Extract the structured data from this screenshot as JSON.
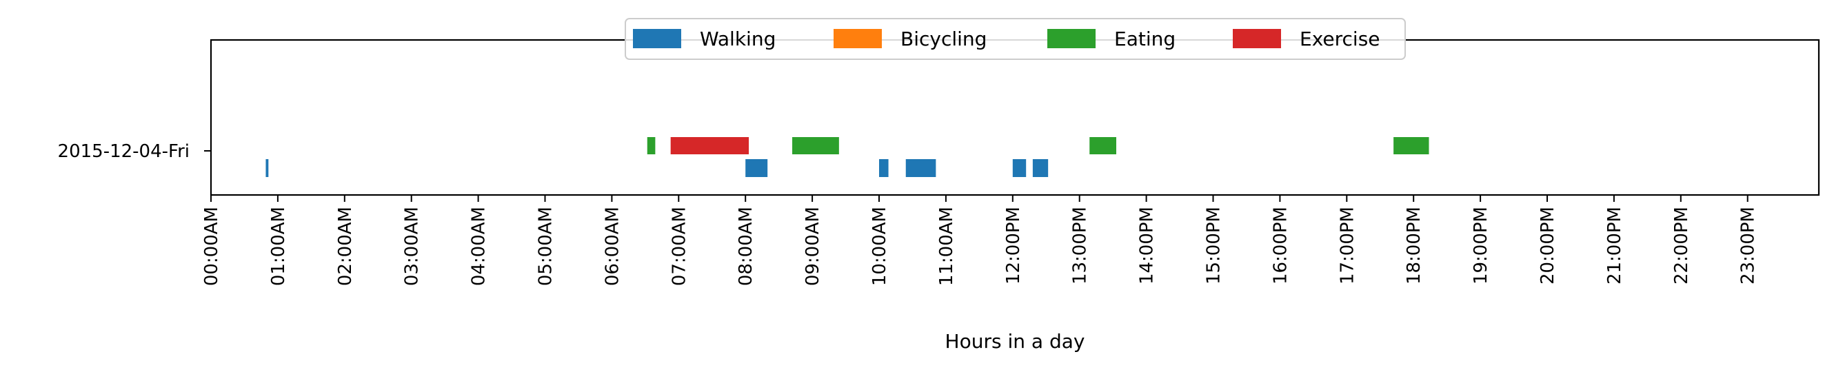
{
  "chart_data": {
    "type": "timeline",
    "title": "",
    "xlabel": "Hours in a day",
    "ylabel": "",
    "xlim": [
      0,
      24
    ],
    "x_unit": "hours",
    "grid": false,
    "legend_position": "top-center",
    "categories": [
      "2015-12-04-Fri"
    ],
    "x_ticks": [
      {
        "value": 0,
        "label": "00:00AM"
      },
      {
        "value": 1,
        "label": "01:00AM"
      },
      {
        "value": 2,
        "label": "02:00AM"
      },
      {
        "value": 3,
        "label": "03:00AM"
      },
      {
        "value": 4,
        "label": "04:00AM"
      },
      {
        "value": 5,
        "label": "05:00AM"
      },
      {
        "value": 6,
        "label": "06:00AM"
      },
      {
        "value": 7,
        "label": "07:00AM"
      },
      {
        "value": 8,
        "label": "08:00AM"
      },
      {
        "value": 9,
        "label": "09:00AM"
      },
      {
        "value": 10,
        "label": "10:00AM"
      },
      {
        "value": 11,
        "label": "11:00AM"
      },
      {
        "value": 12,
        "label": "12:00PM"
      },
      {
        "value": 13,
        "label": "13:00PM"
      },
      {
        "value": 14,
        "label": "14:00PM"
      },
      {
        "value": 15,
        "label": "15:00PM"
      },
      {
        "value": 16,
        "label": "16:00PM"
      },
      {
        "value": 17,
        "label": "17:00PM"
      },
      {
        "value": 18,
        "label": "18:00PM"
      },
      {
        "value": 19,
        "label": "19:00PM"
      },
      {
        "value": 20,
        "label": "20:00PM"
      },
      {
        "value": 21,
        "label": "21:00PM"
      },
      {
        "value": 22,
        "label": "22:00PM"
      },
      {
        "value": 23,
        "label": "23:00PM"
      }
    ],
    "series": [
      {
        "name": "Walking",
        "color": "#1f77b4",
        "lane": "lower",
        "intervals": [
          [
            0.82,
            0.86
          ],
          [
            8.0,
            8.33
          ],
          [
            10.0,
            10.14
          ],
          [
            10.4,
            10.85
          ],
          [
            12.0,
            12.2
          ],
          [
            12.3,
            12.53
          ]
        ]
      },
      {
        "name": "Bicycling",
        "color": "#ff7f0e",
        "lane": "lower",
        "intervals": []
      },
      {
        "name": "Eating",
        "color": "#2ca02c",
        "lane": "upper",
        "intervals": [
          [
            6.53,
            6.65
          ],
          [
            8.7,
            9.4
          ],
          [
            13.15,
            13.55
          ],
          [
            17.7,
            18.23
          ]
        ]
      },
      {
        "name": "Exercise",
        "color": "#d62728",
        "lane": "upper",
        "intervals": [
          [
            6.88,
            8.05
          ]
        ]
      }
    ]
  }
}
